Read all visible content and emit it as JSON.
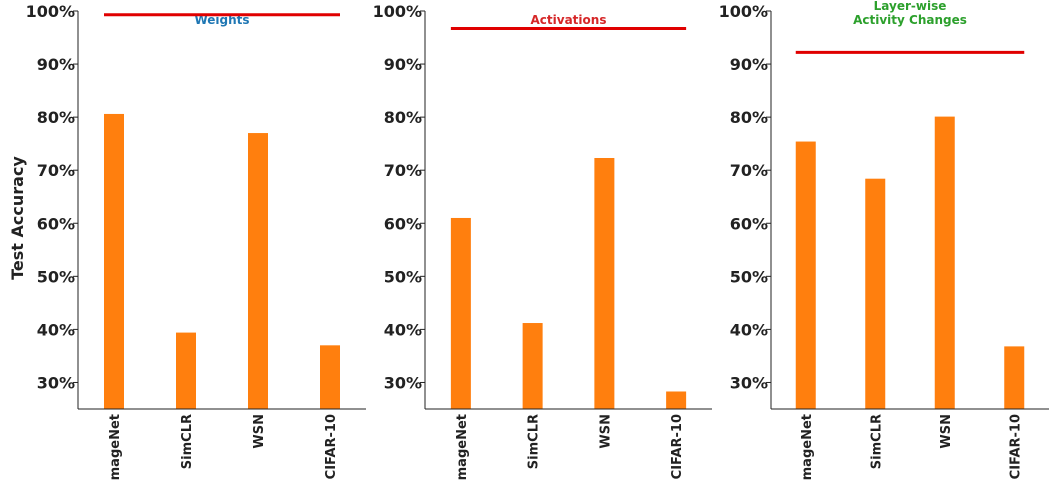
{
  "figure": {
    "ylabel": "Test Accuracy"
  },
  "colors": {
    "bar": "#ff7f0e",
    "reference_line": "#e00000",
    "axis": "#222222",
    "title_weights": "#1f77b4",
    "title_activations": "#d62728",
    "title_layerwise": "#2ca02c"
  },
  "chart_data": [
    {
      "type": "bar",
      "title": "Weights",
      "title_lines": [
        "Weights"
      ],
      "title_color": "#1f77b4",
      "categories": [
        "ImageNet",
        "SimCLR",
        "WSN",
        "CIFAR-10"
      ],
      "values": [
        80.6,
        39.4,
        77.0,
        37.0
      ],
      "reference_line": 99.3,
      "ylim": [
        25,
        100
      ],
      "yticks": [
        30,
        40,
        50,
        60,
        70,
        80,
        90,
        100
      ],
      "ytick_labels": [
        "30%",
        "40%",
        "50%",
        "60%",
        "70%",
        "80%",
        "90%",
        "100%"
      ],
      "ylabel": "Test Accuracy"
    },
    {
      "type": "bar",
      "title": "Activations",
      "title_lines": [
        "Activations"
      ],
      "title_color": "#d62728",
      "categories": [
        "ImageNet",
        "SimCLR",
        "WSN",
        "CIFAR-10"
      ],
      "values": [
        61.0,
        41.2,
        72.3,
        28.3
      ],
      "reference_line": 96.7,
      "ylim": [
        25,
        100
      ],
      "yticks": [
        30,
        40,
        50,
        60,
        70,
        80,
        90,
        100
      ],
      "ytick_labels": [
        "30%",
        "40%",
        "50%",
        "60%",
        "70%",
        "80%",
        "90%",
        "100%"
      ]
    },
    {
      "type": "bar",
      "title": "Layer-wise Activity Changes",
      "title_lines": [
        "Layer-wise",
        "Activity Changes"
      ],
      "title_color": "#2ca02c",
      "categories": [
        "ImageNet",
        "SimCLR",
        "WSN",
        "CIFAR-10"
      ],
      "values": [
        75.4,
        68.4,
        80.1,
        36.8
      ],
      "reference_line": 92.2,
      "ylim": [
        25,
        100
      ],
      "yticks": [
        30,
        40,
        50,
        60,
        70,
        80,
        90,
        100
      ],
      "ytick_labels": [
        "30%",
        "40%",
        "50%",
        "60%",
        "70%",
        "80%",
        "90%",
        "100%"
      ]
    }
  ]
}
